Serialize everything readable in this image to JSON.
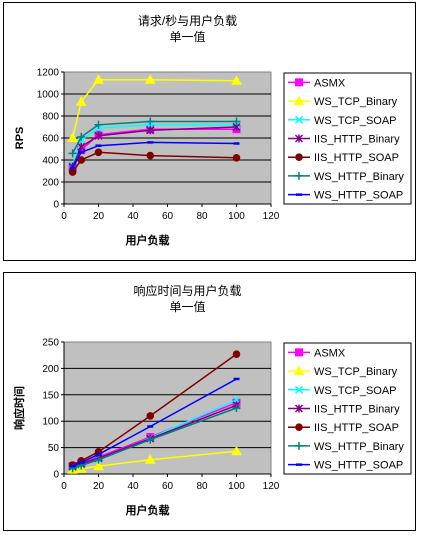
{
  "colors": {
    "ASMX": "#ff00ff",
    "WS_TCP_Binary": "#ffff00",
    "WS_TCP_SOAP": "#00ffff",
    "IIS_HTTP_Binary": "#800080",
    "IIS_HTTP_SOAP": "#800000",
    "WS_HTTP_Binary": "#008080",
    "WS_HTTP_SOAP": "#0000ff",
    "plot_bg": "#c0c0c0"
  },
  "chart_data": [
    {
      "type": "line",
      "title": "请求/秒与用户负载",
      "subtitle": "单一值",
      "xlabel": "用户负载",
      "ylabel": "RPS",
      "xlim": [
        0,
        120
      ],
      "ylim": [
        0,
        1200
      ],
      "xticks": [
        "0",
        "20",
        "40",
        "60",
        "80",
        "100",
        "120"
      ],
      "yticks": [
        "0",
        "200",
        "400",
        "600",
        "800",
        "1000",
        "1200"
      ],
      "grid": "horizontal",
      "legend": "right",
      "series": [
        {
          "name": "ASMX",
          "marker": "square",
          "x": [
            5,
            10,
            20,
            50,
            100
          ],
          "y": [
            330,
            490,
            630,
            680,
            680
          ]
        },
        {
          "name": "WS_TCP_Binary",
          "marker": "triangle",
          "x": [
            5,
            10,
            20,
            50,
            100
          ],
          "y": [
            600,
            930,
            1130,
            1130,
            1120
          ]
        },
        {
          "name": "WS_TCP_SOAP",
          "marker": "x",
          "x": [
            5,
            10,
            20,
            50,
            100
          ],
          "y": [
            360,
            580,
            690,
            720,
            720
          ]
        },
        {
          "name": "IIS_HTTP_Binary",
          "marker": "star",
          "x": [
            5,
            10,
            20,
            50,
            100
          ],
          "y": [
            340,
            520,
            620,
            670,
            700
          ]
        },
        {
          "name": "IIS_HTTP_SOAP",
          "marker": "circle",
          "x": [
            5,
            10,
            20,
            50,
            100
          ],
          "y": [
            290,
            400,
            470,
            440,
            420
          ]
        },
        {
          "name": "WS_HTTP_Binary",
          "marker": "plus",
          "x": [
            5,
            10,
            20,
            50,
            100
          ],
          "y": [
            460,
            610,
            720,
            750,
            750
          ]
        },
        {
          "name": "WS_HTTP_SOAP",
          "marker": "dash",
          "x": [
            5,
            10,
            20,
            50,
            100
          ],
          "y": [
            330,
            470,
            530,
            560,
            550
          ]
        }
      ]
    },
    {
      "type": "line",
      "title": "响应时间与用户负载",
      "subtitle": "单一值",
      "xlabel": "用户负载",
      "ylabel": "响应时间",
      "xlim": [
        0,
        120
      ],
      "ylim": [
        0,
        250
      ],
      "xticks": [
        "0",
        "20",
        "40",
        "60",
        "80",
        "100",
        "120"
      ],
      "yticks": [
        "0",
        "50",
        "100",
        "150",
        "200",
        "250"
      ],
      "grid": "horizontal",
      "legend": "right",
      "series": [
        {
          "name": "ASMX",
          "marker": "square",
          "x": [
            5,
            10,
            20,
            50,
            100
          ],
          "y": [
            15,
            20,
            32,
            70,
            135
          ]
        },
        {
          "name": "WS_TCP_Binary",
          "marker": "triangle",
          "x": [
            5,
            10,
            20,
            50,
            100
          ],
          "y": [
            8,
            10,
            15,
            27,
            43
          ]
        },
        {
          "name": "WS_TCP_SOAP",
          "marker": "x",
          "x": [
            5,
            10,
            20,
            50,
            100
          ],
          "y": [
            13,
            17,
            28,
            68,
            140
          ]
        },
        {
          "name": "IIS_HTTP_Binary",
          "marker": "star",
          "x": [
            5,
            10,
            20,
            50,
            100
          ],
          "y": [
            14,
            19,
            30,
            67,
            130
          ]
        },
        {
          "name": "IIS_HTTP_SOAP",
          "marker": "circle",
          "x": [
            5,
            10,
            20,
            50,
            100
          ],
          "y": [
            17,
            25,
            42,
            110,
            227
          ]
        },
        {
          "name": "WS_HTTP_Binary",
          "marker": "plus",
          "x": [
            5,
            10,
            20,
            50,
            100
          ],
          "y": [
            11,
            16,
            27,
            65,
            125
          ]
        },
        {
          "name": "WS_HTTP_SOAP",
          "marker": "dash",
          "x": [
            5,
            10,
            20,
            50,
            100
          ],
          "y": [
            15,
            22,
            37,
            90,
            180
          ]
        }
      ]
    }
  ]
}
